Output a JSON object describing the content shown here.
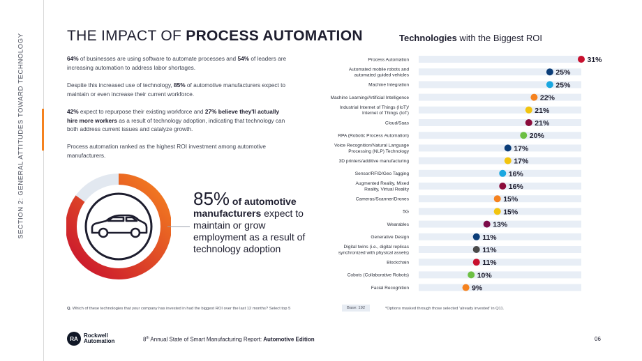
{
  "side_label": "SECTION 2: GENERAL ATTITUDES TOWARD TECHNOLOGY",
  "title": {
    "prefix": "THE IMPACT OF ",
    "bold": "PROCESS AUTOMATION"
  },
  "intro": {
    "p1": {
      "a": "64%",
      "b": " of businesses are using software to automate processes and ",
      "c": "54%",
      "d": " of leaders are increasing automation to address labor shortages."
    },
    "p2": {
      "a": "Despite this increased use of technology, ",
      "b": "85%",
      "c": " of automotive manufacturers expect to maintain or even increase their current workforce."
    },
    "p3": {
      "a": "42%",
      "b": " expect to repurpose their existing workforce and ",
      "c": "27% believe they'll actually hire more workers",
      "d": " as a result of technology adoption, indicating that technology can both address current issues and catalyze growth."
    },
    "p4": "Process automation ranked as the highest ROI investment among automotive manufacturers."
  },
  "callout": {
    "pct": "85%",
    "bold": " of automotive manufacturers",
    "rest": " expect to maintain or grow employment as a result of technology adoption"
  },
  "donut": {
    "value_pct": 85,
    "start_color": "#f5821f",
    "end_color": "#c8102e",
    "track_color": "#e2e8f0",
    "icon": "car-icon"
  },
  "chart_data": {
    "type": "dot",
    "title": {
      "bold": "Technologies",
      "rest": " with the Biggest ROI"
    },
    "xlim": [
      0,
      31
    ],
    "categories": [
      "Process Automation",
      "Automated mobile robots and\nautomated guided vehicles",
      "Machine Integration",
      "Machine Learning/Artificial Intelligence",
      "Industrial Internet of Things (IIoT)/\nInternet of Things (IoT)",
      "Cloud/Saas",
      "RPA (Robotic Process Automation)",
      "Voice Recognition/Natural Language\nProcessing (NLP) Technology",
      "3D printers/additive manufacturing",
      "Sensor/RFID/Geo Tagging",
      "Augmented Reality, Mixed\nReality, Virtual Reality",
      "Cameras/Scanner/Drones",
      "5G",
      "Wearables",
      "Generative Design",
      "Digital twins (i.e., digital replicas\nsynchronized with physical assets)",
      "Blockchain",
      "Cobots (Collaborative Robots)",
      "Facial Recognition"
    ],
    "values": [
      31,
      25,
      25,
      22,
      21,
      21,
      20,
      17,
      17,
      16,
      16,
      15,
      15,
      13,
      11,
      11,
      11,
      10,
      9
    ],
    "labels": [
      "31%",
      "25%",
      "25%",
      "22%",
      "21%",
      "21%",
      "20%",
      "17%",
      "17%",
      "16%",
      "16%",
      "15%",
      "15%",
      "13%",
      "11%",
      "11%",
      "11%",
      "10%",
      "9%"
    ],
    "colors": [
      "#c8102e",
      "#0b3d78",
      "#1aa7e0",
      "#f5821f",
      "#f2c40f",
      "#8b0c3b",
      "#6cbf43",
      "#0b3d78",
      "#f2c40f",
      "#1aa7e0",
      "#8b0c3b",
      "#f5821f",
      "#f2c40f",
      "#7a0a49",
      "#0b3d78",
      "#4a4a4a",
      "#c8102e",
      "#6cbf43",
      "#f5821f"
    ],
    "track_color": "#e8eef6"
  },
  "footnotes": {
    "question_prefix": "Q.",
    "question": " Which of these technologies that your company has invested in had the biggest ROI over the last 12 months? Select top 5",
    "base": "Base: 192",
    "note": "*Options masked through those selected 'already invested' in Q11."
  },
  "footer": {
    "logo_line1": "Rockwell",
    "logo_line2": "Automation",
    "logo_mark": "RA",
    "report_num": "8",
    "report_sup": "th",
    "report_mid": " Annual State of Smart Manufacturing Report: ",
    "report_bold": "Automotive Edition",
    "page": "06"
  }
}
